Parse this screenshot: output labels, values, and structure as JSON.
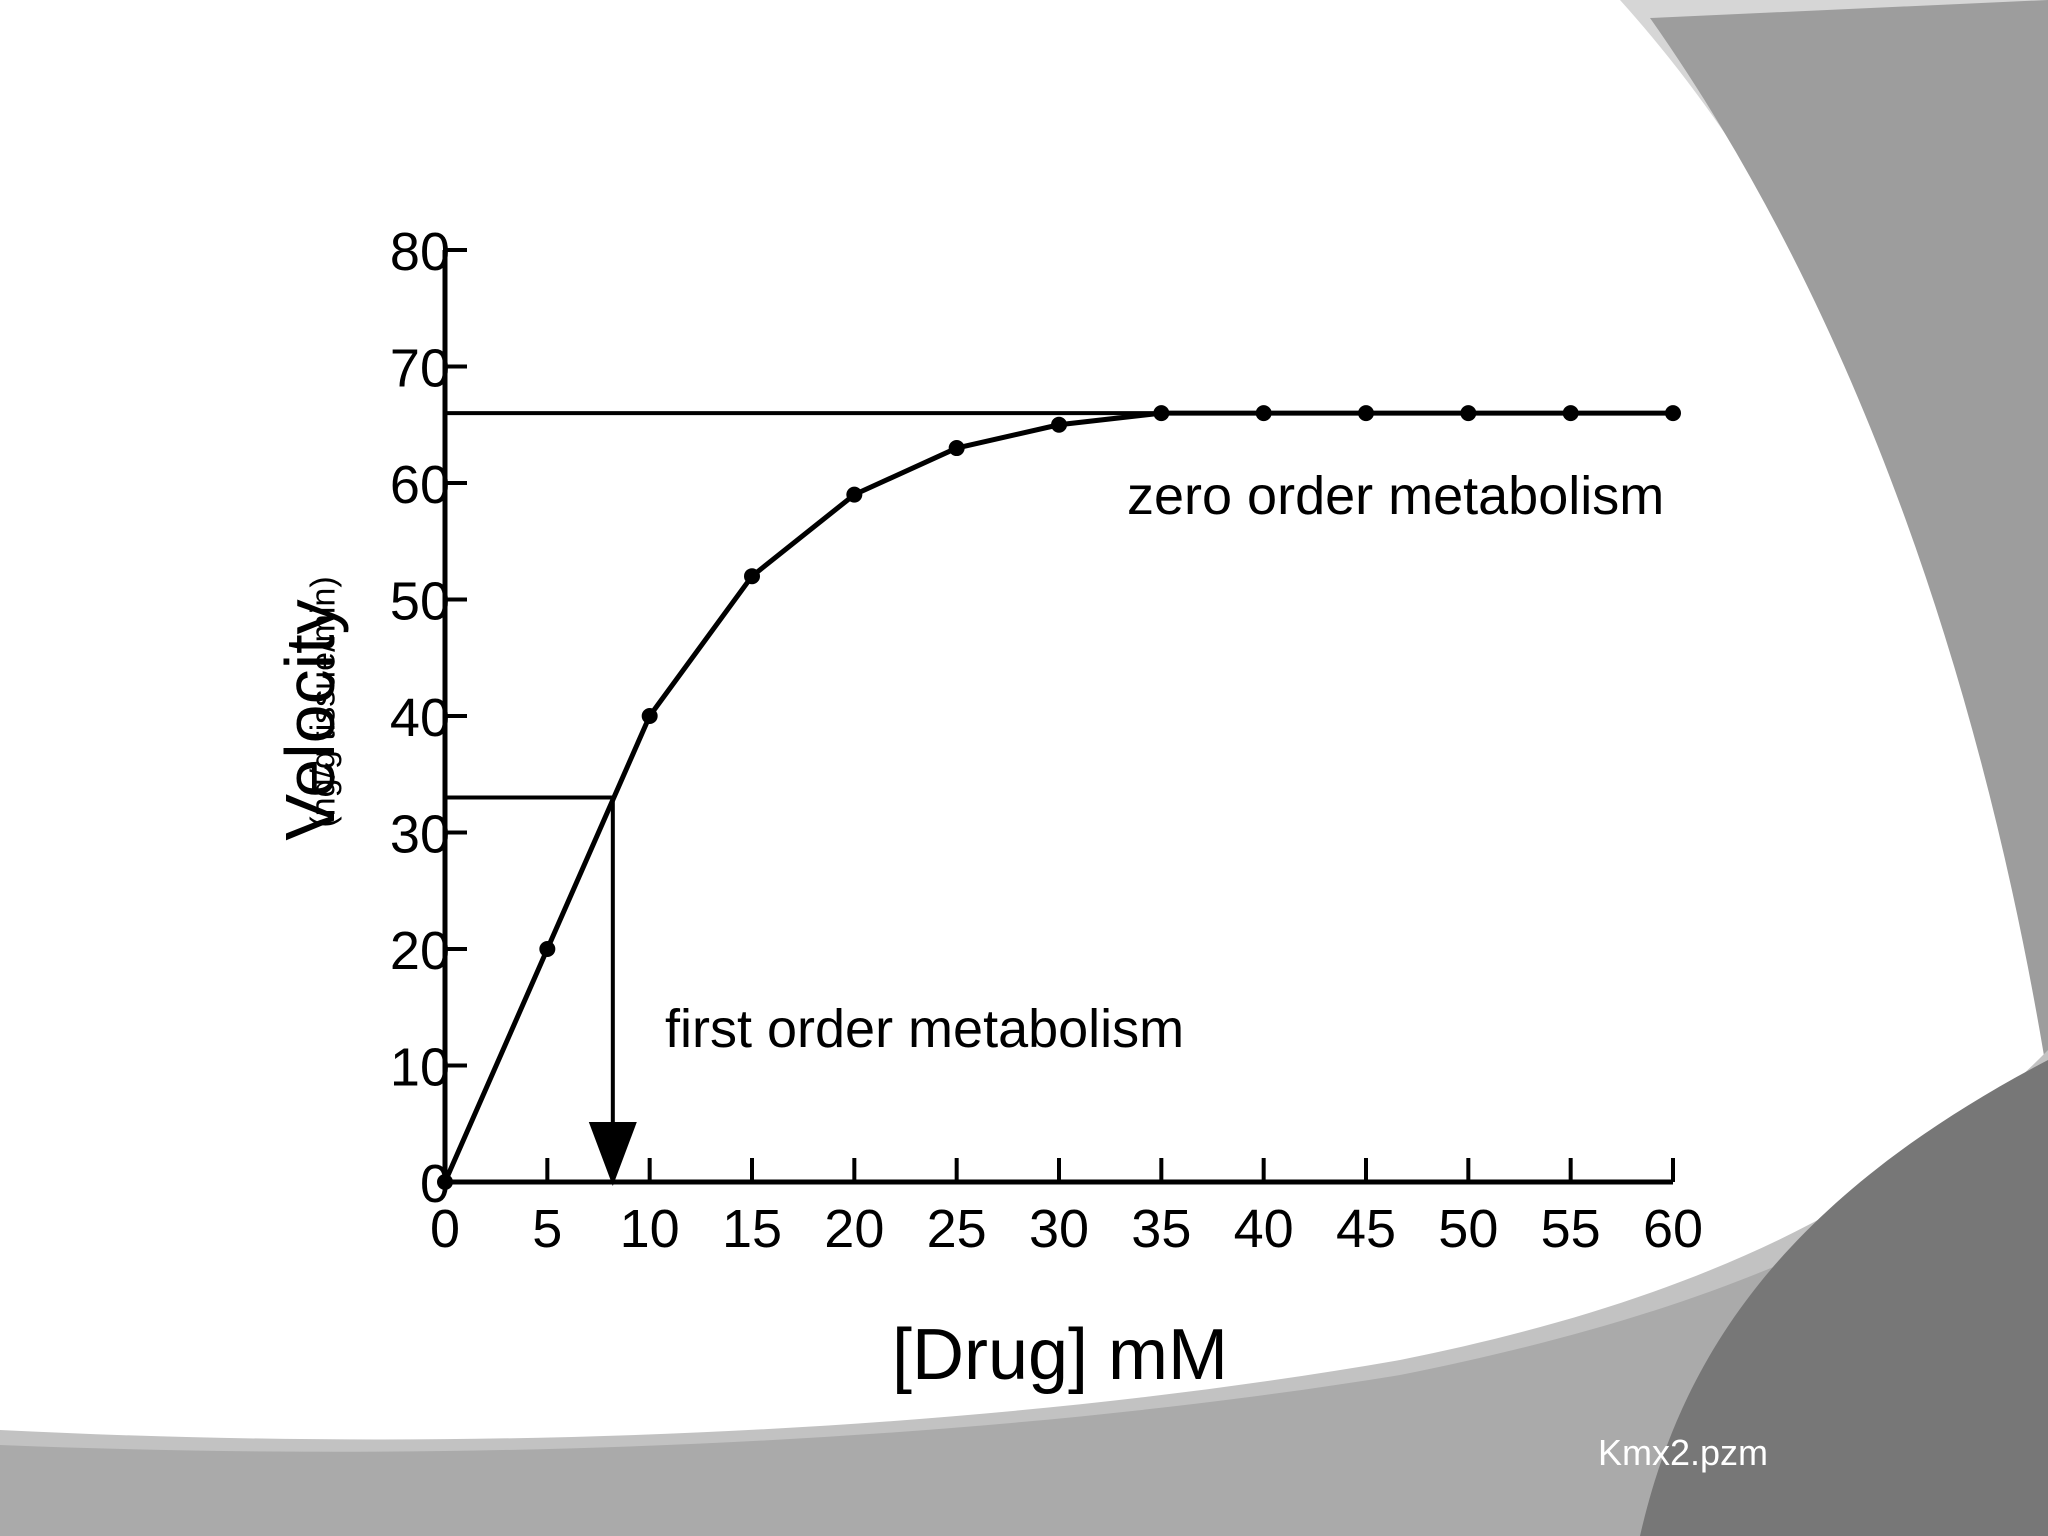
{
  "chart_data": {
    "type": "line",
    "xlabel": "[Drug] mM",
    "ylabel": "Velocity",
    "ylabel_unit": "(ng/g tissue/min)",
    "xlim": [
      0,
      60
    ],
    "ylim": [
      0,
      80
    ],
    "x_ticks": [
      0,
      5,
      10,
      15,
      20,
      25,
      30,
      35,
      40,
      45,
      50,
      55,
      60
    ],
    "y_ticks": [
      0,
      10,
      20,
      30,
      40,
      50,
      60,
      70,
      80
    ],
    "grid": false,
    "series": [
      {
        "x": [
          0,
          5,
          10,
          15,
          20,
          25,
          30,
          35,
          40,
          45,
          50,
          55,
          60
        ],
        "y": [
          0,
          20,
          40,
          52,
          59,
          63,
          65,
          66,
          66,
          66,
          66,
          66,
          66
        ]
      }
    ],
    "reference_lines": {
      "vmax": 66,
      "half_vmax": 33,
      "km": 8.2
    },
    "annotations": {
      "zero_order": "zero order metabolism",
      "first_order": "first order metabolism"
    }
  },
  "footer": "Kmx2.pzm",
  "colors": {
    "line": "#000000",
    "deco_light": "#d4d4d4",
    "deco_mid": "#a8a8a8",
    "deco_dark": "#7a7a7a",
    "footer_text": "#ffffff"
  }
}
